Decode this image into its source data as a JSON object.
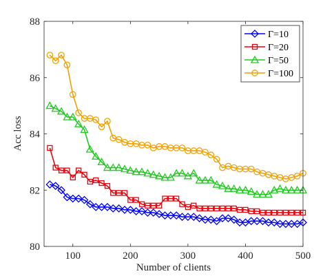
{
  "chart_data": {
    "type": "line",
    "title": "",
    "xlabel": "Number of clients",
    "ylabel": "Acc loss",
    "xlim": [
      50,
      500
    ],
    "ylim": [
      80,
      88
    ],
    "xticks": [
      100,
      200,
      300,
      400,
      500
    ],
    "yticks": [
      80,
      82,
      84,
      86,
      88
    ],
    "grid": false,
    "legend_position": "top-right",
    "x": [
      60,
      70,
      80,
      90,
      100,
      110,
      120,
      130,
      140,
      150,
      160,
      170,
      180,
      190,
      200,
      210,
      220,
      230,
      240,
      250,
      260,
      270,
      280,
      290,
      300,
      310,
      320,
      330,
      340,
      350,
      360,
      370,
      380,
      390,
      400,
      410,
      420,
      430,
      440,
      450,
      460,
      470,
      480,
      490,
      500
    ],
    "series": [
      {
        "name": "Γ=10",
        "color": "#0000ff",
        "marker": "diamond",
        "values": [
          82.2,
          82.15,
          82.0,
          81.75,
          81.7,
          81.7,
          81.65,
          81.5,
          81.4,
          81.4,
          81.4,
          81.35,
          81.35,
          81.3,
          81.3,
          81.25,
          81.25,
          81.2,
          81.2,
          81.15,
          81.1,
          81.1,
          81.1,
          81.05,
          81.05,
          81.05,
          81.0,
          80.95,
          80.95,
          80.9,
          81.0,
          81.0,
          80.95,
          80.85,
          80.85,
          80.9,
          80.9,
          80.9,
          80.85,
          80.85,
          80.8,
          80.8,
          80.8,
          80.8,
          80.85
        ]
      },
      {
        "name": "Γ=20",
        "color": "#e8000b",
        "marker": "square",
        "values": [
          83.5,
          82.8,
          82.7,
          82.7,
          82.45,
          82.7,
          82.55,
          82.3,
          82.35,
          82.25,
          82.15,
          81.9,
          81.9,
          81.9,
          81.65,
          81.65,
          81.5,
          81.45,
          81.45,
          81.45,
          81.7,
          81.7,
          81.7,
          81.5,
          81.4,
          81.45,
          81.35,
          81.35,
          81.35,
          81.35,
          81.35,
          81.35,
          81.35,
          81.3,
          81.3,
          81.25,
          81.25,
          81.2,
          81.2,
          81.2,
          81.2,
          81.2,
          81.2,
          81.2,
          81.2
        ]
      },
      {
        "name": "Γ=50",
        "color": "#1fcc1f",
        "marker": "triangle",
        "values": [
          85.0,
          84.9,
          84.8,
          84.6,
          84.6,
          84.35,
          84.15,
          83.45,
          83.2,
          83.0,
          82.8,
          82.8,
          82.8,
          82.75,
          82.7,
          82.65,
          82.65,
          82.6,
          82.55,
          82.5,
          82.45,
          82.45,
          82.6,
          82.6,
          82.5,
          82.6,
          82.35,
          82.35,
          82.35,
          82.2,
          82.15,
          82.05,
          82.05,
          82.0,
          82.0,
          81.95,
          81.85,
          81.85,
          81.85,
          82.0,
          82.05,
          82.0,
          82.0,
          82.0,
          82.0
        ]
      },
      {
        "name": "Γ=100",
        "color": "#f0a000",
        "marker": "circle",
        "values": [
          86.8,
          86.6,
          86.8,
          86.45,
          85.4,
          84.75,
          84.55,
          84.55,
          84.5,
          84.25,
          84.45,
          83.85,
          83.8,
          83.7,
          83.65,
          83.65,
          83.6,
          83.6,
          83.5,
          83.55,
          83.55,
          83.5,
          83.5,
          83.5,
          83.4,
          83.4,
          83.4,
          83.35,
          83.25,
          83.1,
          82.8,
          82.85,
          82.8,
          82.75,
          82.75,
          82.75,
          82.65,
          82.6,
          82.55,
          82.5,
          82.45,
          82.4,
          82.45,
          82.5,
          82.6
        ]
      }
    ]
  }
}
